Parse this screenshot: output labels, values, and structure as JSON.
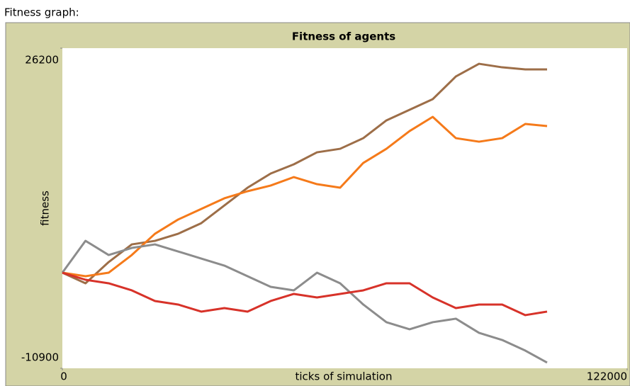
{
  "widget_label": "Fitness graph:",
  "chart_data": {
    "type": "line",
    "title": "Fitness of agents",
    "x_label": "ticks of simulation",
    "y_label": "fitness",
    "xlim": [
      0,
      122000
    ],
    "ylim": [
      -10900,
      26200
    ],
    "xticks": [
      0,
      122000
    ],
    "yticks": [
      -10900,
      26200
    ],
    "x": [
      0,
      5000,
      10000,
      15000,
      20000,
      25000,
      30000,
      35000,
      40000,
      45000,
      50000,
      55000,
      60000,
      65000,
      70000,
      75000,
      80000,
      85000,
      90000,
      95000,
      100000,
      104700
    ],
    "series": [
      {
        "color": "#9d6e48",
        "values": [
          180,
          -1050,
          1410,
          3460,
          3870,
          4690,
          5920,
          7970,
          10030,
          11670,
          12740,
          14130,
          14540,
          15770,
          17830,
          19060,
          20290,
          22920,
          24390,
          23980,
          23740,
          23740
        ]
      },
      {
        "color": "#f57a1a",
        "values": [
          180,
          -230,
          180,
          2230,
          4690,
          6340,
          7570,
          8800,
          9620,
          10280,
          11260,
          10440,
          10030,
          12900,
          14540,
          16590,
          18240,
          15770,
          15360,
          15770,
          17420,
          17170
        ]
      },
      {
        "color": "#8c8c8c",
        "values": [
          180,
          3870,
          2230,
          3050,
          3460,
          2640,
          1820,
          1000,
          -230,
          -1460,
          -1870,
          180,
          -1050,
          -3510,
          -5560,
          -6380,
          -5560,
          -5150,
          -6790,
          -7620,
          -8850,
          -10240
        ]
      },
      {
        "color": "#d73229",
        "values": [
          180,
          -640,
          -1050,
          -1870,
          -3100,
          -3510,
          -4330,
          -3920,
          -4330,
          -3100,
          -2280,
          -2690,
          -2280,
          -1870,
          -1050,
          -1050,
          -2690,
          -3920,
          -3510,
          -3510,
          -4740,
          -4330
        ]
      }
    ]
  }
}
